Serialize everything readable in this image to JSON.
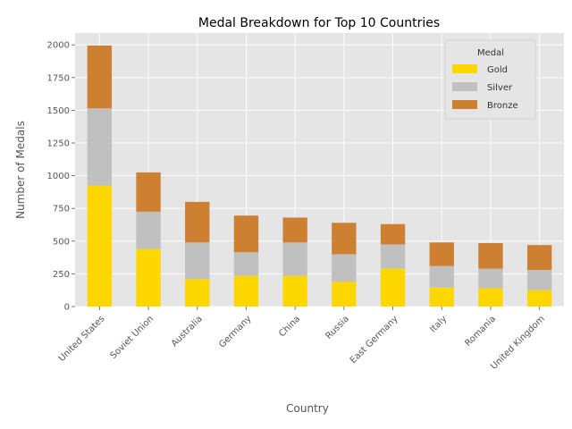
{
  "chart_data": {
    "type": "bar",
    "stacked": true,
    "title": "Medal Breakdown for Top 10 Countries",
    "xlabel": "Country",
    "ylabel": "Number of Medals",
    "categories": [
      "United States",
      "Soviet Union",
      "Australia",
      "Germany",
      "China",
      "Russia",
      "East Germany",
      "Italy",
      "Romania",
      "United Kingdom"
    ],
    "series": [
      {
        "name": "Gold",
        "color": "#FFD700",
        "values": [
          925,
          440,
          210,
          235,
          235,
          190,
          290,
          145,
          140,
          125
        ]
      },
      {
        "name": "Silver",
        "color": "#C0C0C0",
        "values": [
          590,
          285,
          280,
          180,
          255,
          210,
          185,
          165,
          150,
          155
        ]
      },
      {
        "name": "Bronze",
        "color": "#CD7F32",
        "values": [
          480,
          300,
          310,
          280,
          190,
          240,
          155,
          180,
          195,
          190
        ]
      }
    ],
    "ylim": [
      0,
      2090
    ],
    "yticks": [
      0,
      250,
      500,
      750,
      1000,
      1250,
      1500,
      1750,
      2000
    ],
    "legend_title": "Medal",
    "legend_position": "top-right",
    "grid": true,
    "background": "#E5E5E5"
  }
}
